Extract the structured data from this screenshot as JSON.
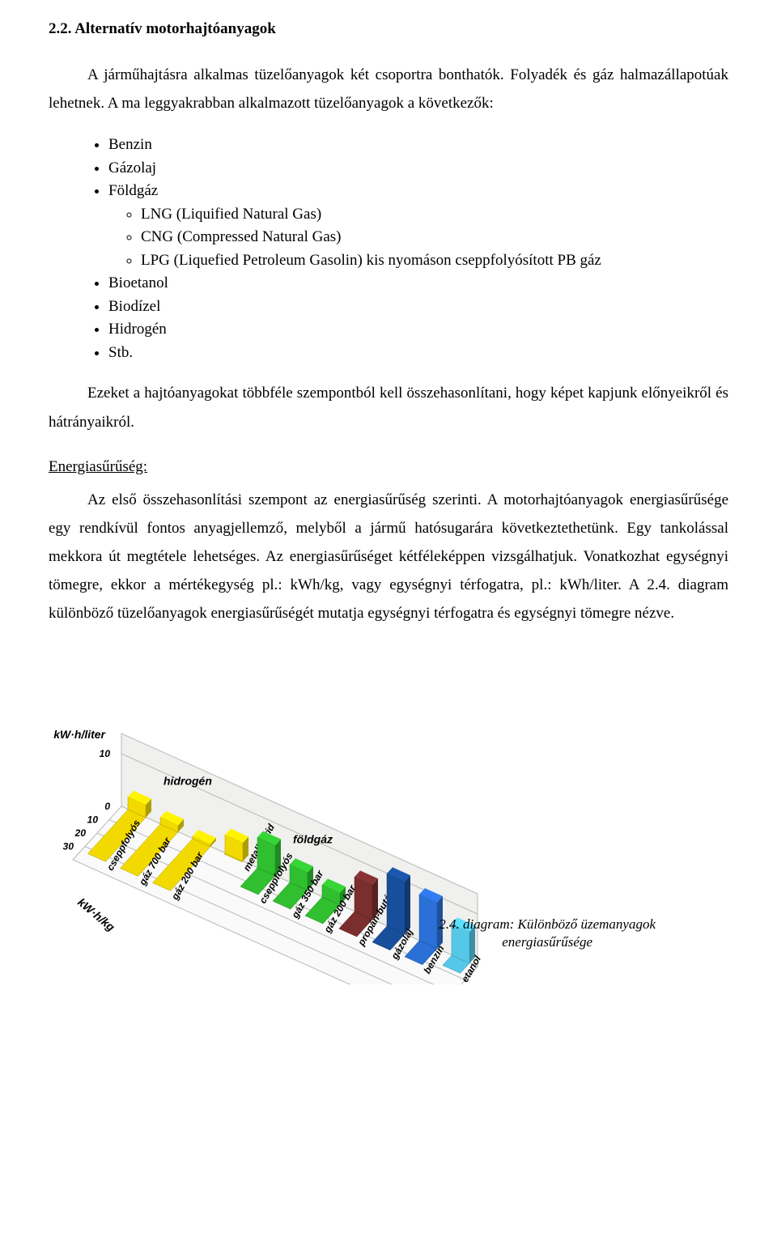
{
  "section_title": "2.2. Alternatív motorhajtóanyagok",
  "intro_para": "A járműhajtásra alkalmas tüzelőanyagok két csoportra bonthatók. Folyadék és gáz halmazállapotúak lehetnek. A ma leggyakrabban alkalmazott tüzelőanyagok a következők:",
  "bullets": {
    "b0": "Benzin",
    "b1": "Gázolaj",
    "b2": "Földgáz",
    "b2_sub": {
      "s0": "LNG (Liquified Natural Gas)",
      "s1": "CNG (Compressed Natural Gas)",
      "s2": "LPG (Liquefied Petroleum Gasolin) kis nyomáson cseppfolyósított PB gáz"
    },
    "b3": "Bioetanol",
    "b4": "Biodízel",
    "b5": "Hidrogén",
    "b6": "Stb."
  },
  "para2": "Ezeket a hajtóanyagokat többféle szempontból kell összehasonlítani, hogy képet kapjunk előnyeikről és hátrányaikról.",
  "subsection_heading": "Energiasűrűség:",
  "para3": "Az első összehasonlítási szempont az energiasűrűség szerinti. A motorhajtóanyagok energiasűrűsége egy rendkívül fontos anyagjellemző, melyből a jármű hatósugarára következtethetünk. Egy tankolással mekkora út megtétele lehetséges. Az energiasűrűséget kétféleképpen vizsgálhatjuk. Vonatkozhat egységnyi tömegre, ekkor a mértékegység pl.: kWh/kg, vagy egységnyi térfogatra, pl.: kWh/liter. A 2.4. diagram különböző tüzelőanyagok energiasűrűségét mutatja egységnyi térfogatra és egységnyi tömegre nézve.",
  "caption_l1": "2.4. diagram: Különböző üzemanyagok",
  "caption_l2": "energiasűrűsége",
  "chart": {
    "type": "3d-bar-isometric",
    "axis_top_label": "kW·h/liter",
    "axis_top_ticks": [
      "10",
      "0"
    ],
    "axis_bottom_label": "kW·h/kg",
    "axis_bottom_ticks": [
      "10",
      "20",
      "30"
    ],
    "wall_labels": [
      "hidrogén",
      "földgáz"
    ],
    "bar_labels_floor": [
      "cseppfolyós",
      "gáz 700 bar",
      "gáz 200 bar",
      "metalhidrid",
      "cseppfolyós",
      "gáz 350 bar",
      "gáz 200 bar",
      "propán-bután",
      "gázolaj",
      "benzin",
      "etanol"
    ],
    "bars": [
      {
        "l": "hidrogén cseppfolyós",
        "top_val": 2.4,
        "bot_val": 33,
        "color": "#f2da00"
      },
      {
        "l": "hidrogén gáz 700 bar",
        "top_val": 1.3,
        "bot_val": 33,
        "color": "#f2da00"
      },
      {
        "l": "hidrogén gáz 200 bar",
        "top_val": 0.5,
        "bot_val": 33,
        "color": "#f2da00"
      },
      {
        "l": "metalhidrid",
        "top_val": 3.5,
        "bot_val": 0.6,
        "color": "#f2da00"
      },
      {
        "l": "földgáz cseppfolyós",
        "top_val": 5.8,
        "bot_val": 14,
        "color": "#2fbf2f"
      },
      {
        "l": "földgáz gáz 350 bar",
        "top_val": 3.4,
        "bot_val": 14,
        "color": "#2fbf2f"
      },
      {
        "l": "földgáz gáz 200 bar",
        "top_val": 2.3,
        "bot_val": 14,
        "color": "#2fbf2f"
      },
      {
        "l": "propán-bután",
        "top_val": 6.6,
        "bot_val": 12.8,
        "color": "#7a2e2e"
      },
      {
        "l": "gázolaj",
        "top_val": 10,
        "bot_val": 12,
        "color": "#174f9c"
      },
      {
        "l": "benzin",
        "top_val": 8.8,
        "bot_val": 12,
        "color": "#2a70d6"
      },
      {
        "l": "etanol",
        "top_val": 6,
        "bot_val": 7.5,
        "color": "#55c8e8"
      }
    ],
    "back_wall_color": "#f0f0ee",
    "floor_color": "#fafafa",
    "grid_color": "#b8b8b8",
    "axis_font_size": 14,
    "label_font_size": 12,
    "font_family": "Arial"
  }
}
